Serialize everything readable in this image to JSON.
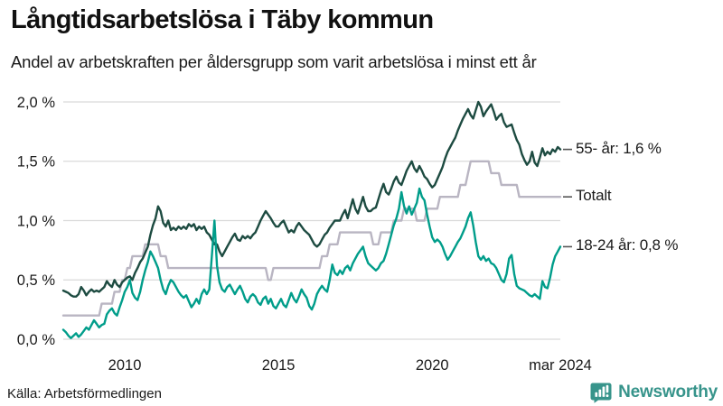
{
  "header": {
    "title": "Långtidsarbetslösa i Täby kommun",
    "subtitle": "Andel av arbetskraften per åldersgrupp som varit arbetslösa i minst ett år"
  },
  "footer": {
    "source": "Källa: Arbetsförmedlingen",
    "brand": "Newsworthy",
    "brand_color": "#37948b"
  },
  "chart_data": {
    "type": "line",
    "title": "Långtidsarbetslösa i Täby kommun",
    "subtitle": "Andel av arbetskraften per åldersgrupp som varit arbetslösa i minst ett år",
    "unit": "%",
    "frequency": "monthly",
    "x_range": [
      "2008-01",
      "2024-03"
    ],
    "ylim": [
      0,
      2.0
    ],
    "grid": true,
    "grid_color": "#dadada",
    "axis_text_color": "#1a1a1a",
    "yticks": [
      {
        "v": 0.0,
        "label": "0,0 %"
      },
      {
        "v": 0.5,
        "label": "0,5 %"
      },
      {
        "v": 1.0,
        "label": "1,0 %"
      },
      {
        "v": 1.5,
        "label": "1,5 %"
      },
      {
        "v": 2.0,
        "label": "2,0 %"
      }
    ],
    "xticks": [
      {
        "i": 24,
        "label": "2010"
      },
      {
        "i": 84,
        "label": "2015"
      },
      {
        "i": 144,
        "label": "2020"
      },
      {
        "i": 194,
        "label": "mar 2024"
      }
    ],
    "series": [
      {
        "name": "55- år",
        "end_label": "55- år: 1,6 %",
        "end_value": 1.6,
        "color": "#1d4b41",
        "values": [
          0.41,
          0.4,
          0.39,
          0.37,
          0.36,
          0.36,
          0.38,
          0.44,
          0.41,
          0.37,
          0.4,
          0.42,
          0.4,
          0.41,
          0.4,
          0.42,
          0.44,
          0.49,
          0.46,
          0.44,
          0.5,
          0.46,
          0.44,
          0.48,
          0.5,
          0.52,
          0.53,
          0.5,
          0.56,
          0.6,
          0.65,
          0.68,
          0.73,
          0.78,
          0.88,
          0.96,
          1.02,
          1.12,
          1.08,
          0.98,
          0.95,
          1.0,
          0.92,
          0.94,
          0.92,
          0.95,
          0.93,
          0.95,
          0.93,
          0.97,
          0.95,
          0.97,
          0.92,
          0.95,
          0.93,
          0.95,
          0.9,
          0.88,
          0.84,
          0.8,
          0.8,
          0.74,
          0.7,
          0.74,
          0.78,
          0.82,
          0.86,
          0.89,
          0.84,
          0.83,
          0.87,
          0.85,
          0.87,
          0.85,
          0.88,
          0.9,
          0.95,
          1.0,
          1.04,
          1.08,
          1.05,
          1.02,
          0.98,
          0.95,
          0.95,
          0.98,
          1.0,
          0.95,
          0.9,
          0.92,
          0.9,
          0.95,
          0.98,
          0.95,
          0.92,
          0.9,
          0.88,
          0.84,
          0.8,
          0.78,
          0.8,
          0.84,
          0.88,
          0.9,
          0.94,
          0.97,
          1.0,
          1.0,
          1.0,
          1.05,
          1.09,
          1.02,
          1.1,
          1.18,
          1.1,
          1.06,
          1.13,
          1.2,
          1.12,
          1.08,
          1.08,
          1.1,
          1.11,
          1.18,
          1.25,
          1.31,
          1.24,
          1.22,
          1.27,
          1.33,
          1.37,
          1.32,
          1.3,
          1.36,
          1.42,
          1.46,
          1.5,
          1.44,
          1.41,
          1.46,
          1.42,
          1.37,
          1.35,
          1.31,
          1.28,
          1.3,
          1.35,
          1.4,
          1.45,
          1.52,
          1.58,
          1.62,
          1.66,
          1.7,
          1.76,
          1.81,
          1.86,
          1.9,
          1.94,
          1.89,
          1.86,
          1.93,
          2.0,
          1.96,
          1.88,
          1.92,
          1.95,
          1.98,
          1.92,
          1.85,
          1.88,
          1.9,
          1.83,
          1.79,
          1.8,
          1.81,
          1.74,
          1.68,
          1.64,
          1.56,
          1.51,
          1.47,
          1.5,
          1.58,
          1.49,
          1.46,
          1.53,
          1.61,
          1.55,
          1.58,
          1.56,
          1.6,
          1.58,
          1.62,
          1.6
        ]
      },
      {
        "name": "Totalt",
        "end_label": "Totalt",
        "end_value": 1.2,
        "color": "#b9b5c2",
        "values": [
          0.2,
          0.2,
          0.2,
          0.2,
          0.2,
          0.2,
          0.2,
          0.2,
          0.2,
          0.2,
          0.2,
          0.2,
          0.2,
          0.2,
          0.2,
          0.3,
          0.3,
          0.3,
          0.3,
          0.3,
          0.4,
          0.4,
          0.4,
          0.5,
          0.5,
          0.6,
          0.6,
          0.7,
          0.7,
          0.7,
          0.7,
          0.7,
          0.8,
          0.8,
          0.8,
          0.8,
          0.8,
          0.8,
          0.7,
          0.7,
          0.7,
          0.6,
          0.6,
          0.6,
          0.6,
          0.6,
          0.6,
          0.6,
          0.6,
          0.6,
          0.6,
          0.6,
          0.6,
          0.6,
          0.6,
          0.6,
          0.6,
          0.6,
          0.6,
          0.6,
          0.6,
          0.6,
          0.6,
          0.6,
          0.6,
          0.6,
          0.6,
          0.6,
          0.6,
          0.6,
          0.6,
          0.6,
          0.6,
          0.6,
          0.6,
          0.6,
          0.6,
          0.6,
          0.6,
          0.6,
          0.5,
          0.5,
          0.6,
          0.6,
          0.6,
          0.6,
          0.6,
          0.6,
          0.6,
          0.6,
          0.6,
          0.6,
          0.6,
          0.6,
          0.6,
          0.6,
          0.6,
          0.6,
          0.6,
          0.6,
          0.6,
          0.7,
          0.7,
          0.7,
          0.8,
          0.8,
          0.8,
          0.8,
          0.9,
          0.9,
          0.9,
          0.9,
          0.9,
          0.9,
          0.9,
          0.9,
          0.9,
          0.9,
          0.9,
          0.9,
          0.9,
          0.8,
          0.8,
          0.8,
          0.9,
          0.9,
          0.9,
          0.9,
          0.9,
          1.0,
          1.0,
          1.0,
          1.0,
          1.1,
          1.1,
          1.1,
          1.1,
          1.1,
          1.0,
          1.0,
          1.0,
          1.0,
          1.1,
          1.1,
          1.1,
          1.1,
          1.1,
          1.2,
          1.2,
          1.2,
          1.2,
          1.2,
          1.2,
          1.2,
          1.2,
          1.3,
          1.3,
          1.3,
          1.4,
          1.5,
          1.5,
          1.5,
          1.5,
          1.5,
          1.5,
          1.5,
          1.5,
          1.4,
          1.4,
          1.4,
          1.4,
          1.3,
          1.3,
          1.3,
          1.3,
          1.3,
          1.3,
          1.3,
          1.2,
          1.2,
          1.2,
          1.2,
          1.2,
          1.2,
          1.2,
          1.2,
          1.2,
          1.2,
          1.2,
          1.2,
          1.2,
          1.2,
          1.2,
          1.2,
          1.2
        ]
      },
      {
        "name": "18-24 år",
        "end_label": "18-24 år: 0,8 %",
        "end_value": 0.8,
        "color": "#009d8a",
        "values": [
          0.08,
          0.06,
          0.03,
          0.01,
          0.03,
          0.05,
          0.02,
          0.04,
          0.07,
          0.1,
          0.08,
          0.12,
          0.16,
          0.13,
          0.1,
          0.12,
          0.13,
          0.21,
          0.24,
          0.26,
          0.22,
          0.2,
          0.27,
          0.33,
          0.4,
          0.44,
          0.5,
          0.39,
          0.35,
          0.33,
          0.4,
          0.5,
          0.58,
          0.65,
          0.74,
          0.7,
          0.65,
          0.6,
          0.5,
          0.42,
          0.38,
          0.45,
          0.5,
          0.48,
          0.44,
          0.4,
          0.37,
          0.35,
          0.37,
          0.32,
          0.27,
          0.3,
          0.34,
          0.3,
          0.38,
          0.42,
          0.38,
          0.42,
          0.7,
          1.0,
          0.62,
          0.48,
          0.42,
          0.4,
          0.44,
          0.46,
          0.42,
          0.38,
          0.42,
          0.45,
          0.4,
          0.34,
          0.31,
          0.36,
          0.38,
          0.36,
          0.31,
          0.29,
          0.34,
          0.36,
          0.3,
          0.34,
          0.28,
          0.26,
          0.3,
          0.34,
          0.29,
          0.27,
          0.33,
          0.39,
          0.34,
          0.31,
          0.36,
          0.42,
          0.38,
          0.35,
          0.28,
          0.25,
          0.3,
          0.38,
          0.42,
          0.45,
          0.42,
          0.4,
          0.5,
          0.63,
          0.56,
          0.54,
          0.58,
          0.55,
          0.6,
          0.62,
          0.58,
          0.64,
          0.68,
          0.72,
          0.75,
          0.78,
          0.7,
          0.64,
          0.62,
          0.6,
          0.58,
          0.6,
          0.64,
          0.66,
          0.72,
          0.8,
          0.88,
          0.96,
          1.02,
          1.1,
          1.24,
          1.12,
          1.06,
          1.12,
          1.05,
          1.1,
          1.15,
          1.27,
          1.2,
          1.17,
          1.05,
          0.95,
          0.86,
          0.82,
          0.84,
          0.82,
          0.78,
          0.72,
          0.67,
          0.7,
          0.74,
          0.78,
          0.82,
          0.85,
          0.9,
          0.95,
          1.02,
          1.07,
          0.96,
          0.82,
          0.7,
          0.67,
          0.7,
          0.66,
          0.68,
          0.64,
          0.63,
          0.6,
          0.55,
          0.5,
          0.48,
          0.55,
          0.68,
          0.71,
          0.55,
          0.45,
          0.43,
          0.42,
          0.41,
          0.39,
          0.37,
          0.36,
          0.38,
          0.36,
          0.34,
          0.49,
          0.44,
          0.43,
          0.52,
          0.63,
          0.7,
          0.74,
          0.78
        ]
      }
    ],
    "draw_order": [
      1,
      0,
      2
    ],
    "leader_dash_color": "#545454"
  }
}
